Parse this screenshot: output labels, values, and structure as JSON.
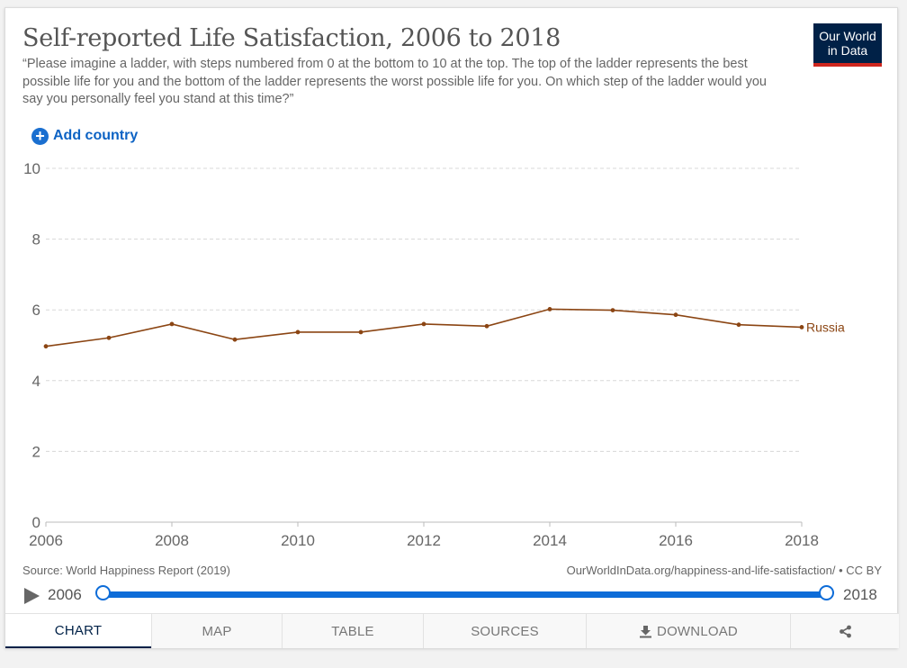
{
  "header": {
    "title": "Self-reported Life Satisfaction, 2006 to 2018",
    "subtitle": "“Please imagine a ladder, with steps numbered from 0 at the bottom to 10 at the top. The top of the ladder represents the best possible life for you and the bottom of the ladder represents the worst possible life for you. On which step of the ladder would you say you personally feel you stand at this time?”",
    "logo_line1": "Our World",
    "logo_line2": "in Data"
  },
  "controls": {
    "add_country_label": "Add country"
  },
  "chart_data": {
    "type": "line",
    "title": "Self-reported Life Satisfaction, 2006 to 2018",
    "xlabel": "",
    "ylabel": "",
    "xlim": [
      2006,
      2018
    ],
    "ylim": [
      0,
      10
    ],
    "x_ticks": [
      2006,
      2008,
      2010,
      2012,
      2014,
      2016,
      2018
    ],
    "y_ticks": [
      0,
      2,
      4,
      6,
      8,
      10
    ],
    "grid": "horizontal dashed",
    "series": [
      {
        "name": "Russia",
        "color": "#8b4513",
        "x": [
          2006,
          2007,
          2008,
          2009,
          2010,
          2011,
          2012,
          2013,
          2014,
          2015,
          2016,
          2017,
          2018
        ],
        "values": [
          4.97,
          5.21,
          5.6,
          5.16,
          5.37,
          5.37,
          5.6,
          5.54,
          6.02,
          5.99,
          5.86,
          5.58,
          5.51
        ]
      }
    ]
  },
  "footer": {
    "source": "Source: World Happiness Report (2019)",
    "url": "OurWorldInData.org/happiness-and-life-satisfaction/ • CC BY"
  },
  "timeline": {
    "start_label": "2006",
    "end_label": "2018",
    "range_start": 0,
    "range_end": 1
  },
  "tabs": [
    {
      "label": "CHART",
      "active": true
    },
    {
      "label": "MAP",
      "active": false
    },
    {
      "label": "TABLE",
      "active": false
    },
    {
      "label": "SOURCES",
      "active": false
    },
    {
      "label": "DOWNLOAD",
      "active": false
    }
  ],
  "icons": {
    "add": "plus-circle-icon",
    "play": "play-icon",
    "download": "download-icon",
    "share": "share-icon"
  },
  "colors": {
    "accent": "#0d6cd8",
    "brand_navy": "#002147",
    "brand_red": "#ce261e",
    "series_russia": "#8b4513"
  }
}
